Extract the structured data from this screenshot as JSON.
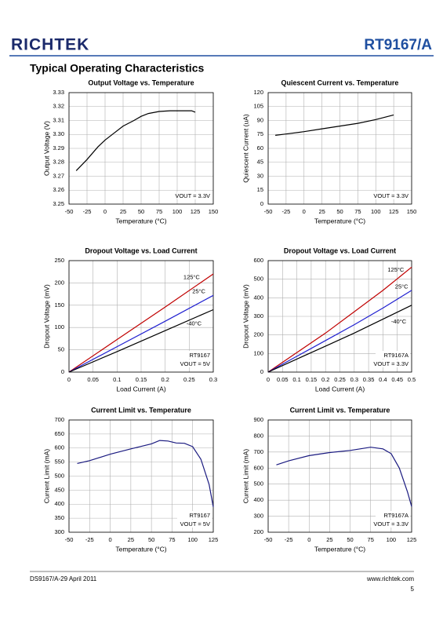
{
  "header": {
    "logo": "RICHTEK",
    "part": "RT9167/A",
    "heading": "Typical Operating Characteristics"
  },
  "footer": {
    "doc": "DS9167/A-29   April  2011",
    "site": "www.richtek.com",
    "page": "5"
  },
  "chart_data": [
    {
      "type": "line",
      "title": "Output Voltage vs. Temperature",
      "x_label": "Temperature (°C)",
      "y_label": "Output Voltage (V)",
      "xlim": [
        -50,
        150
      ],
      "xticks": [
        -50,
        -25,
        0,
        25,
        50,
        75,
        100,
        125,
        150
      ],
      "ylim": [
        3.25,
        3.33
      ],
      "yticks": [
        3.25,
        3.26,
        3.27,
        3.28,
        3.29,
        {
          "value": 3.3,
          "label": "3.30"
        },
        3.31,
        3.32,
        3.33
      ],
      "grid": true,
      "annotations": [
        "VOUT = 3.3V"
      ],
      "series": [
        {
          "color": "#000000",
          "x": [
            -40,
            -25,
            -10,
            0,
            10,
            25,
            40,
            50,
            60,
            75,
            90,
            100,
            110,
            120,
            125
          ],
          "values": [
            3.274,
            3.282,
            3.291,
            3.296,
            3.3,
            3.306,
            3.31,
            3.313,
            3.315,
            3.3165,
            3.317,
            3.317,
            3.317,
            3.317,
            3.316
          ]
        }
      ]
    },
    {
      "type": "line",
      "title": "Quiescent Current vs. Temperature",
      "x_label": "Temperature (°C)",
      "y_label": "Quiescent Current (uA)",
      "xlim": [
        -50,
        150
      ],
      "xticks": [
        -50,
        -25,
        0,
        25,
        50,
        75,
        100,
        125,
        150
      ],
      "ylim": [
        0,
        120
      ],
      "yticks": [
        0,
        15,
        30,
        45,
        60,
        75,
        90,
        105,
        120
      ],
      "grid": true,
      "annotations": [
        "VOUT = 3.3V"
      ],
      "series": [
        {
          "color": "#000000",
          "x": [
            -40,
            -25,
            0,
            25,
            50,
            75,
            100,
            125
          ],
          "values": [
            74,
            75.5,
            78,
            81,
            84,
            87,
            91,
            96
          ]
        }
      ]
    },
    {
      "type": "line",
      "title": "Dropout Voltage vs. Load Current",
      "x_label": "Load Current (A)",
      "y_label": "Dropout Voltage  (mV)",
      "xlim": [
        0,
        0.3
      ],
      "xticks": [
        0,
        0.05,
        0.1,
        0.15,
        0.2,
        0.25,
        0.3
      ],
      "ylim": [
        0,
        250
      ],
      "yticks": [
        0,
        50,
        100,
        150,
        200,
        250
      ],
      "grid": true,
      "annotations": [
        "RT9167",
        "VOUT = 5V"
      ],
      "series": [
        {
          "name": "125°C",
          "color": "#c00000",
          "x": [
            0,
            0.1,
            0.2,
            0.3
          ],
          "values": [
            0,
            73,
            146,
            220
          ]
        },
        {
          "name": "25°C",
          "color": "#1f1fd0",
          "x": [
            0,
            0.1,
            0.2,
            0.3
          ],
          "values": [
            0,
            57,
            114,
            172
          ]
        },
        {
          "name": "-40°C",
          "color": "#000000",
          "x": [
            0,
            0.1,
            0.2,
            0.3
          ],
          "values": [
            0,
            46,
            93,
            140
          ]
        }
      ]
    },
    {
      "type": "line",
      "title": "Dropout Voltage vs. Load Current",
      "x_label": "Load Current (A)",
      "y_label": "Dropout Voltage  (mV)",
      "xlim": [
        0,
        0.5
      ],
      "xticks": [
        0,
        0.05,
        0.1,
        0.15,
        0.2,
        0.25,
        0.3,
        0.35,
        0.4,
        0.45,
        0.5
      ],
      "ylim": [
        0,
        600
      ],
      "yticks": [
        0,
        100,
        200,
        300,
        400,
        500,
        600
      ],
      "grid": true,
      "annotations": [
        "RT9167A",
        "VOUT = 3.3V"
      ],
      "series": [
        {
          "name": "125°C",
          "color": "#c00000",
          "x": [
            0,
            0.1,
            0.2,
            0.3,
            0.4,
            0.5
          ],
          "values": [
            0,
            105,
            210,
            325,
            440,
            565
          ]
        },
        {
          "name": "25°C",
          "color": "#1f1fd0",
          "x": [
            0,
            0.1,
            0.2,
            0.3,
            0.4,
            0.5
          ],
          "values": [
            0,
            85,
            170,
            255,
            345,
            440
          ]
        },
        {
          "name": "-40°C",
          "color": "#000000",
          "x": [
            0,
            0.1,
            0.2,
            0.3,
            0.4,
            0.5
          ],
          "values": [
            0,
            70,
            140,
            210,
            285,
            360
          ]
        }
      ]
    },
    {
      "type": "line",
      "title": "Current Limit vs. Temperature",
      "x_label": "Temperature (°C)",
      "y_label": "Current Limit (mA)",
      "xlim": [
        -50,
        125
      ],
      "xticks": [
        -50,
        -25,
        0,
        25,
        50,
        75,
        100,
        125
      ],
      "ylim": [
        300,
        700
      ],
      "yticks": [
        300,
        350,
        400,
        450,
        500,
        550,
        600,
        650,
        700
      ],
      "grid": true,
      "annotations": [
        "RT9167",
        "VOUT = 5V"
      ],
      "series": [
        {
          "color": "#1a1a80",
          "x": [
            -40,
            -25,
            0,
            25,
            50,
            60,
            70,
            80,
            90,
            100,
            110,
            120,
            125
          ],
          "values": [
            545,
            555,
            578,
            597,
            615,
            627,
            625,
            618,
            617,
            605,
            560,
            470,
            390
          ]
        }
      ]
    },
    {
      "type": "line",
      "title": "Current Limit vs. Temperature",
      "x_label": "Temperature (°C)",
      "y_label": "Current Limit (mA)",
      "xlim": [
        -50,
        125
      ],
      "xticks": [
        -50,
        -25,
        0,
        25,
        50,
        75,
        100,
        125
      ],
      "ylim": [
        200,
        900
      ],
      "yticks": [
        200,
        300,
        400,
        500,
        600,
        700,
        800,
        900
      ],
      "grid": true,
      "annotations": [
        "RT9167A",
        "VOUT = 3.3V"
      ],
      "series": [
        {
          "color": "#1a1a80",
          "x": [
            -40,
            -25,
            0,
            25,
            50,
            75,
            90,
            100,
            110,
            120,
            125
          ],
          "values": [
            620,
            645,
            678,
            697,
            710,
            730,
            720,
            690,
            600,
            450,
            360
          ]
        }
      ]
    }
  ]
}
